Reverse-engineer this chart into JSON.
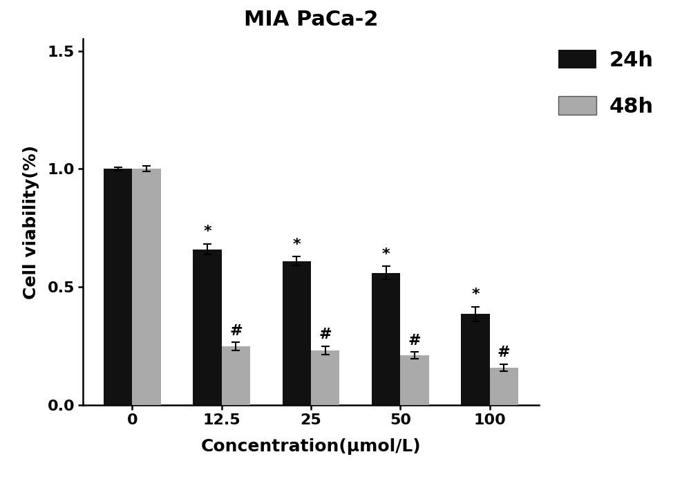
{
  "title": "MIA PaCa-2",
  "xlabel": "Concentration（μmol/L）",
  "ylabel": "Cell viability(%)",
  "categories": [
    "0",
    "12.5",
    "25",
    "50",
    "100"
  ],
  "values_24h": [
    1.0,
    0.66,
    0.61,
    0.56,
    0.385
  ],
  "values_48h": [
    1.0,
    0.248,
    0.232,
    0.21,
    0.158
  ],
  "errors_24h": [
    0.008,
    0.022,
    0.018,
    0.028,
    0.032
  ],
  "errors_48h": [
    0.012,
    0.018,
    0.018,
    0.015,
    0.016
  ],
  "color_24h": "#111111",
  "color_48h": "#aaaaaa",
  "bar_width": 0.32,
  "ylim": [
    0.0,
    1.55
  ],
  "yticks": [
    0.0,
    0.5,
    1.0,
    1.5
  ],
  "legend_labels": [
    "24h",
    "48h"
  ],
  "sig_star_24h": [
    false,
    true,
    true,
    true,
    true
  ],
  "sig_hash_48h": [
    false,
    true,
    true,
    true,
    true
  ],
  "background_color": "#ffffff",
  "title_fontsize": 22,
  "label_fontsize": 18,
  "tick_fontsize": 16,
  "legend_fontsize": 22,
  "annot_fontsize": 16
}
